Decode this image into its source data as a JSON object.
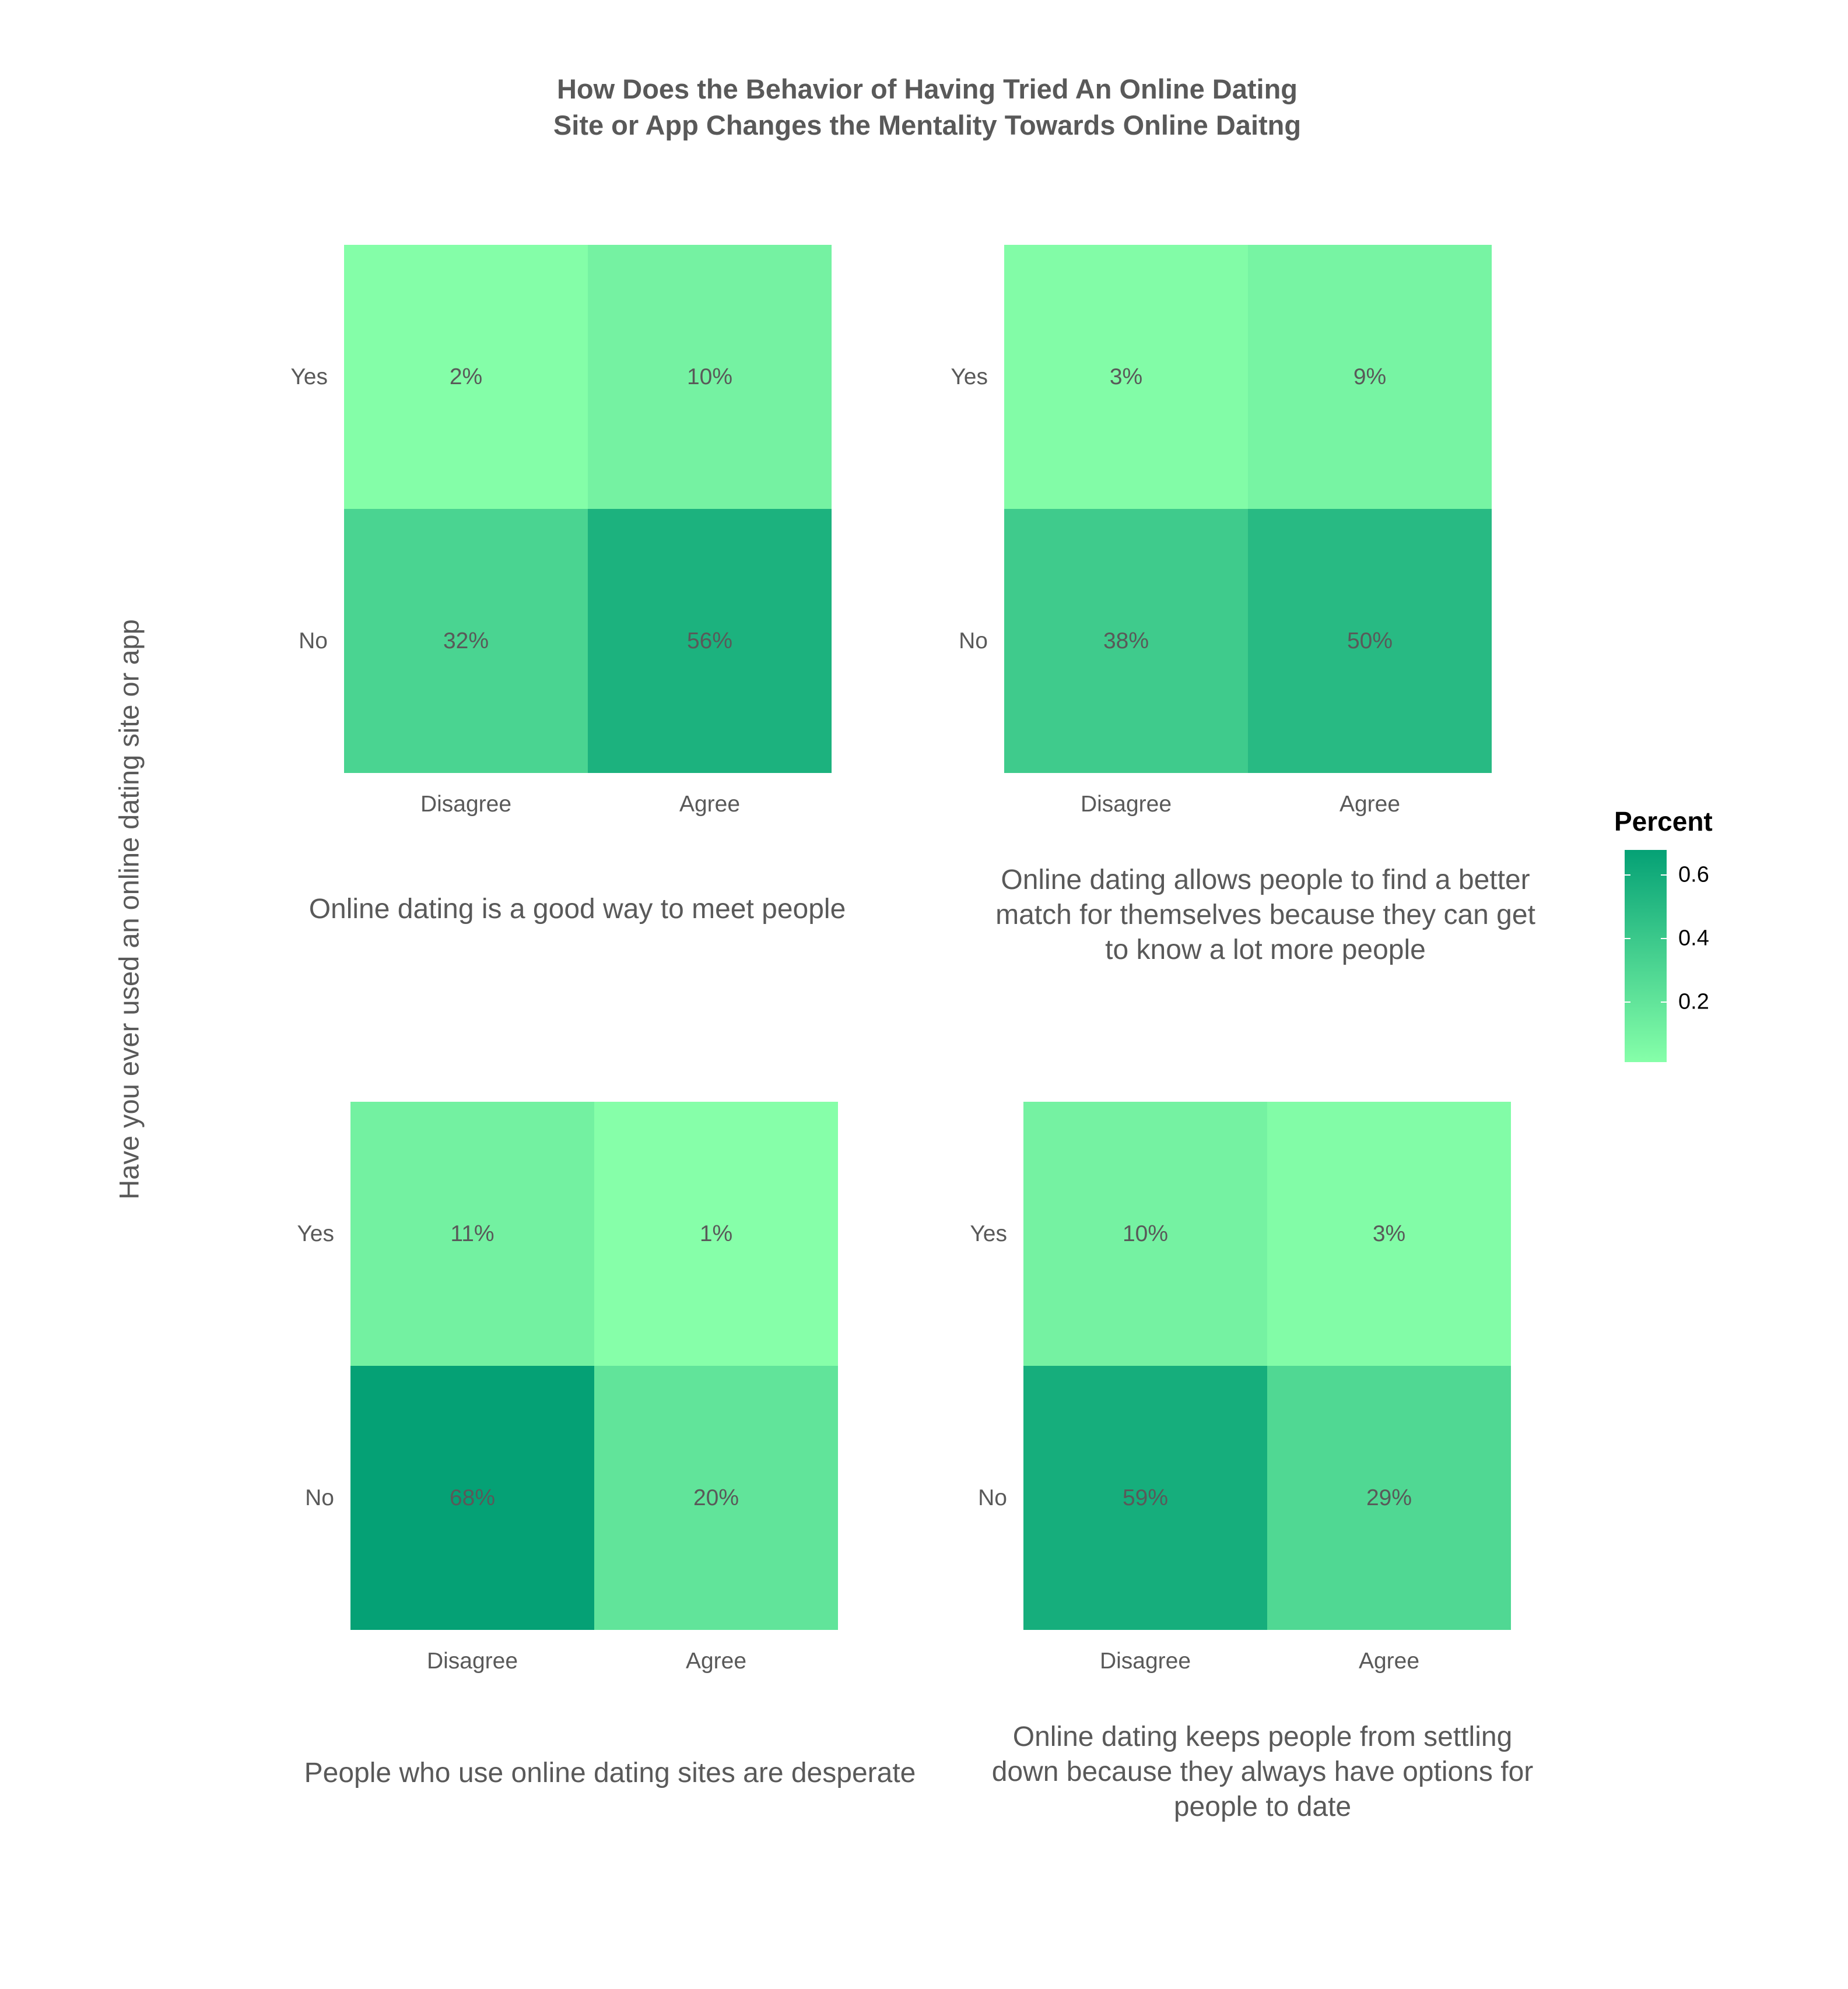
{
  "title": "How Does the Behavior of Having Tried An Online Dating\nSite or App Changes the Mentality Towards Online Daitng",
  "ylabel": "Have you ever used an online dating site or app",
  "legend": {
    "title": "Percent",
    "ticks": [
      "0.2",
      "0.4",
      "0.6"
    ],
    "tick_values": [
      0.2,
      0.4,
      0.6
    ],
    "range": [
      0.01,
      0.68
    ],
    "low_color": "#86FFA9",
    "high_color": "#05A175"
  },
  "chart_data": [
    {
      "type": "heatmap",
      "xlabel": "Online dating is a good way to meet people",
      "categories": [
        "Disagree",
        "Agree"
      ],
      "rows": [
        "Yes",
        "No"
      ],
      "values": [
        [
          0.02,
          0.1
        ],
        [
          0.32,
          0.56
        ]
      ],
      "labels": [
        [
          "2%",
          "10%"
        ],
        [
          "32%",
          "56%"
        ]
      ]
    },
    {
      "type": "heatmap",
      "xlabel": "Online dating allows people to find a better match for themselves because they can get to know a lot more people",
      "categories": [
        "Disagree",
        "Agree"
      ],
      "rows": [
        "Yes",
        "No"
      ],
      "values": [
        [
          0.03,
          0.09
        ],
        [
          0.38,
          0.5
        ]
      ],
      "labels": [
        [
          "3%",
          "9%"
        ],
        [
          "38%",
          "50%"
        ]
      ]
    },
    {
      "type": "heatmap",
      "xlabel": "People who use online dating sites are desperate",
      "categories": [
        "Disagree",
        "Agree"
      ],
      "rows": [
        "Yes",
        "No"
      ],
      "values": [
        [
          0.11,
          0.01
        ],
        [
          0.68,
          0.2
        ]
      ],
      "labels": [
        [
          "11%",
          "1%"
        ],
        [
          "68%",
          "20%"
        ]
      ]
    },
    {
      "type": "heatmap",
      "xlabel": "Online dating keeps people from settling down because they always have options for people to date",
      "categories": [
        "Disagree",
        "Agree"
      ],
      "rows": [
        "Yes",
        "No"
      ],
      "values": [
        [
          0.1,
          0.03
        ],
        [
          0.59,
          0.29
        ]
      ],
      "labels": [
        [
          "10%",
          "3%"
        ],
        [
          "59%",
          "29%"
        ]
      ]
    }
  ]
}
